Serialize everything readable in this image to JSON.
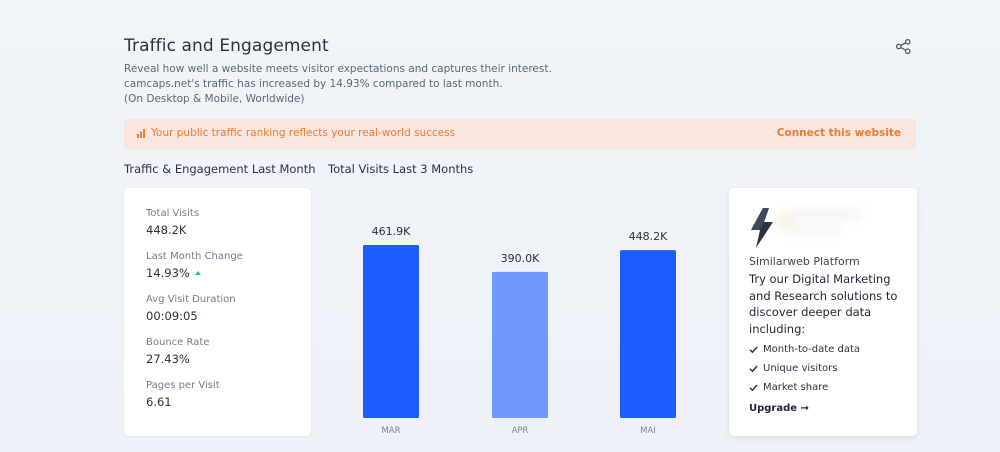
{
  "header": {
    "title": "Traffic and Engagement",
    "description_lines": [
      "Reveal how well a website meets visitor expectations and captures their interest.",
      "camcaps.net's traffic has increased by 14.93% compared to last month.",
      "(On Desktop & Mobile, Worldwide)"
    ],
    "share_icon": "share-icon"
  },
  "banner": {
    "icon": "bar-chart-icon",
    "text": "Your public traffic ranking reflects your real-world success",
    "link": "Connect this website",
    "color": "#f07b2e",
    "background": "#f8e6df"
  },
  "engagement": {
    "title": "Traffic & Engagement Last Month",
    "stats": [
      {
        "label": "Total Visits",
        "value": "448.2K"
      },
      {
        "label": "Last Month Change",
        "value": "14.93%",
        "trend": "up"
      },
      {
        "label": "Avg Visit Duration",
        "value": "00:09:05"
      },
      {
        "label": "Bounce Rate",
        "value": "27.43%"
      },
      {
        "label": "Pages per Visit",
        "value": "6.61"
      }
    ]
  },
  "visits_chart": {
    "title": "Total Visits Last 3 Months"
  },
  "chart_data": {
    "type": "bar",
    "title": "Total Visits Last 3 Months",
    "categories": [
      "MAR",
      "APR",
      "MAI"
    ],
    "values": [
      461.9,
      390.0,
      448.2
    ],
    "value_labels": [
      "461.9K",
      "390.0K",
      "448.2K"
    ],
    "ylim": [
      0,
      500
    ],
    "grid": false,
    "bar_colors": [
      "#1c5cff",
      "#6e98fb",
      "#1c5cff"
    ]
  },
  "promo": {
    "logo_icon": "lightning-logo-icon",
    "name": "Similarweb Platform",
    "headline": "Try our Digital Marketing and Research solutions to discover deeper data including:",
    "features": [
      "Month-to-date data",
      "Unique visitors",
      "Market share"
    ],
    "cta": "Upgrade →"
  }
}
